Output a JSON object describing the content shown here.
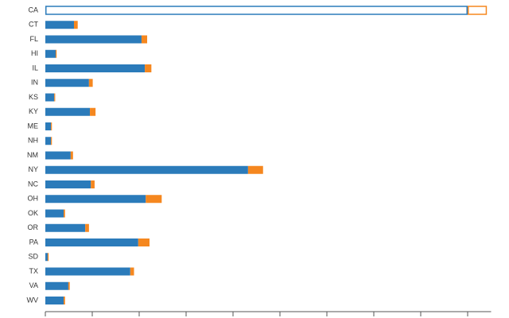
{
  "chart_data": {
    "type": "stacked-bar-horizontal",
    "categories": [
      "CA",
      "CT",
      "FL",
      "HI",
      "IL",
      "IN",
      "KS",
      "KY",
      "ME",
      "NH",
      "NM",
      "NY",
      "NC",
      "OH",
      "OK",
      "OR",
      "PA",
      "SD",
      "TX",
      "VA",
      "WV"
    ],
    "series": [
      {
        "color": "#2b7bba",
        "values": [
          9.0,
          0.61,
          2.05,
          0.22,
          2.12,
          0.93,
          0.19,
          0.95,
          0.12,
          0.12,
          0.54,
          4.32,
          0.97,
          2.14,
          0.39,
          0.85,
          1.98,
          0.05,
          1.81,
          0.49,
          0.39
        ]
      },
      {
        "color": "#f5871f",
        "values": [
          0.41,
          0.08,
          0.12,
          0.02,
          0.14,
          0.08,
          0.02,
          0.12,
          0.02,
          0.02,
          0.05,
          0.32,
          0.08,
          0.34,
          0.03,
          0.08,
          0.24,
          0.02,
          0.08,
          0.03,
          0.03
        ]
      }
    ],
    "xlim": [
      0,
      9.5
    ],
    "xticks": [
      0,
      1,
      2,
      3,
      4,
      5,
      6,
      7,
      8,
      9
    ],
    "highlighted_index": 0
  }
}
